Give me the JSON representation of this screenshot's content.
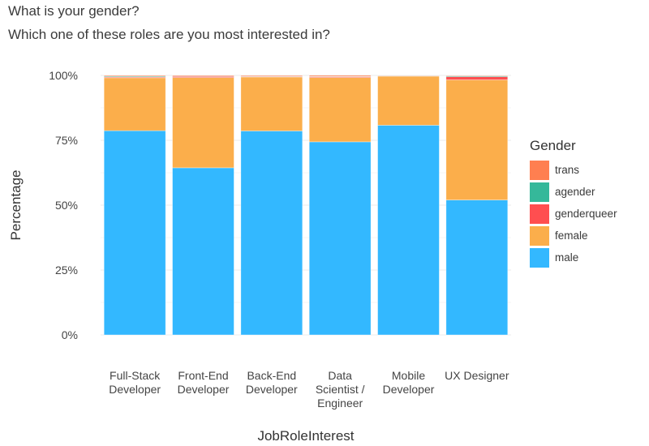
{
  "chart_data": {
    "type": "bar",
    "stacked": true,
    "percent": true,
    "title": "What is your gender?",
    "subtitle": "Which one of these roles are you most interested in?",
    "xlabel": "JobRoleInterest",
    "ylabel": "Percentage",
    "ylim": [
      0,
      100
    ],
    "yticks": [
      "0%",
      "25%",
      "50%",
      "75%",
      "100%"
    ],
    "ytick_values": [
      0,
      25,
      50,
      75,
      100
    ],
    "grid": true,
    "categories": [
      [
        "Full-Stack",
        "Developer"
      ],
      [
        "Front-End",
        "Developer"
      ],
      [
        "Back-End",
        "Developer"
      ],
      [
        "Data",
        "Scientist /",
        "Engineer"
      ],
      [
        "Mobile",
        "Developer"
      ],
      [
        "UX Designer"
      ]
    ],
    "series": [
      {
        "name": "male",
        "color": "#33B8FF",
        "values": [
          78.7,
          64.4,
          78.6,
          74.4,
          80.8,
          52.0
        ]
      },
      {
        "name": "female",
        "color": "#FBAE4B",
        "values": [
          20.4,
          34.8,
          20.8,
          24.8,
          18.9,
          46.3
        ]
      },
      {
        "name": "genderqueer",
        "color": "#FF4E50",
        "values": [
          0.3,
          0.4,
          0.2,
          0.3,
          0.1,
          1.2
        ]
      },
      {
        "name": "agender",
        "color": "#35B89A",
        "values": [
          0.3,
          0.1,
          0.1,
          0.1,
          0.1,
          0.3
        ]
      },
      {
        "name": "trans",
        "color": "#FF7F50",
        "values": [
          0.3,
          0.3,
          0.3,
          0.4,
          0.1,
          0.2
        ]
      }
    ],
    "legend": {
      "title": "Gender",
      "position": "right",
      "order": [
        "trans",
        "agender",
        "genderqueer",
        "female",
        "male"
      ]
    }
  }
}
